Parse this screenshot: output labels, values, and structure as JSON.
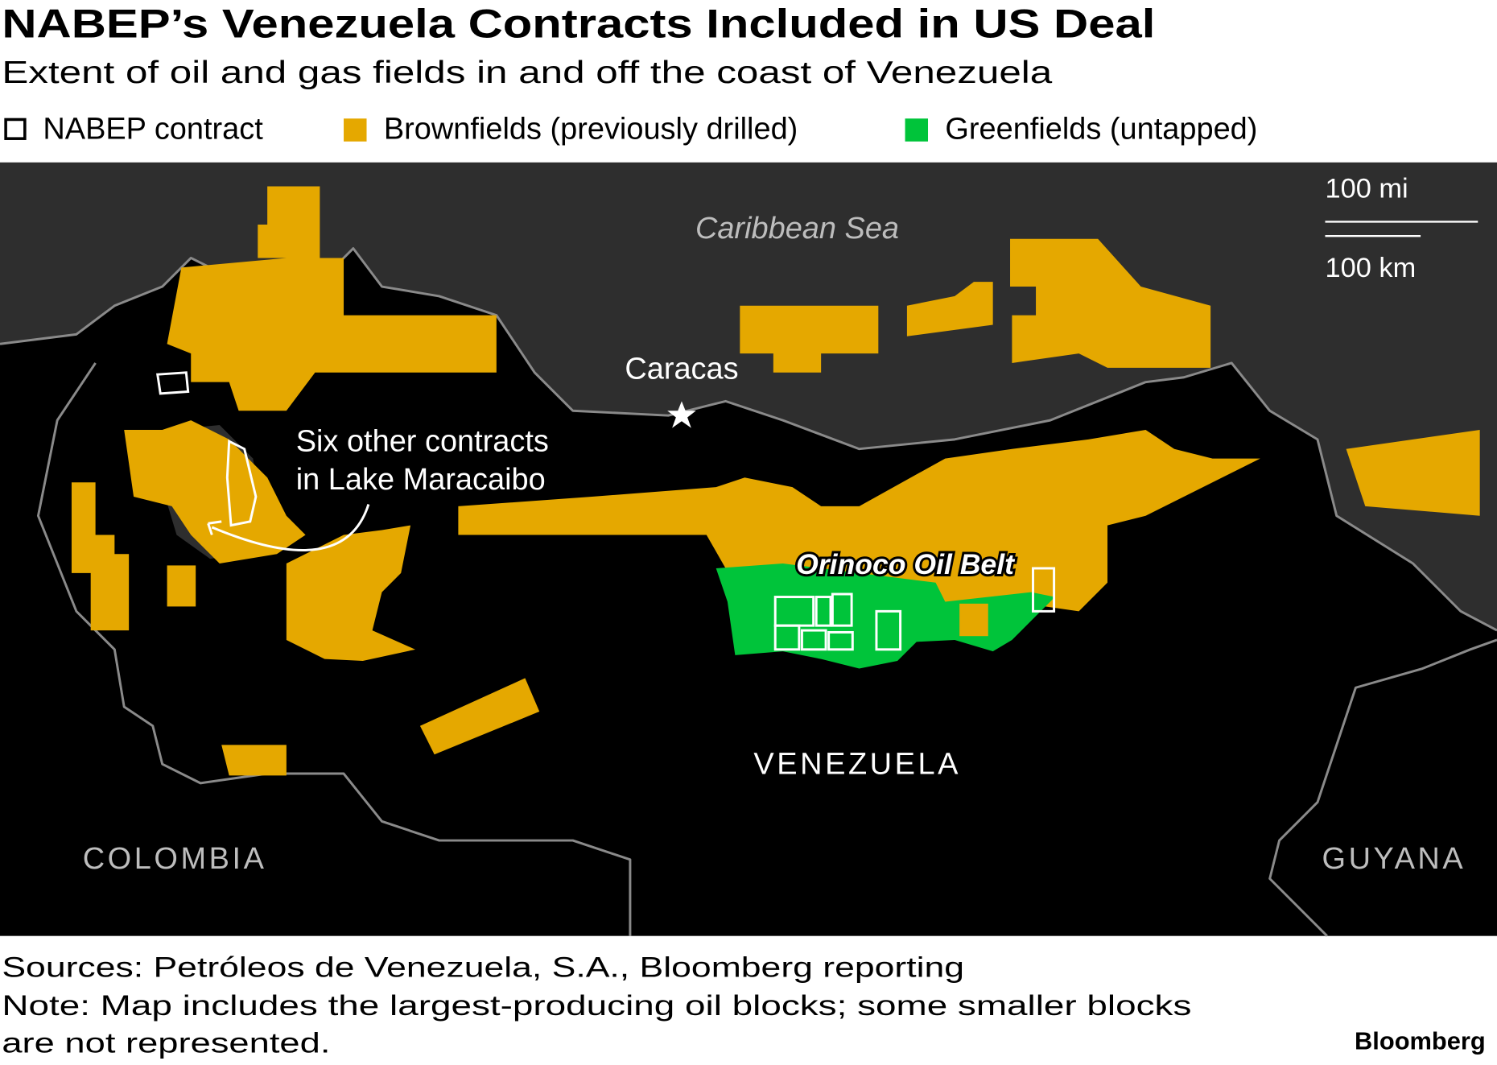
{
  "header": {
    "title": "NABEP’s Venezuela Contracts Included in US Deal",
    "subtitle": "Extent of oil and gas fields in and off the coast of Venezuela"
  },
  "legend": [
    "NABEP contract",
    "Brownfields (previously drilled)",
    "Greenfields (untapped)"
  ],
  "map": {
    "sea": "Caribbean Sea",
    "capital": "Caracas",
    "lake_note": [
      "Six other contracts",
      "in Lake Maracaibo"
    ],
    "belt": "Orinoco Oil Belt",
    "countries": [
      "VENEZUELA",
      "COLOMBIA",
      "GUYANA"
    ],
    "scale": [
      "100 mi",
      "100 km"
    ]
  },
  "footer": {
    "sources": "Sources: Petróleos de Venezuela, S.A., Bloomberg reporting",
    "note": [
      "Note: Map includes the largest-producing oil blocks; some smaller blocks",
      "are not represented."
    ],
    "brand": "Bloomberg"
  }
}
